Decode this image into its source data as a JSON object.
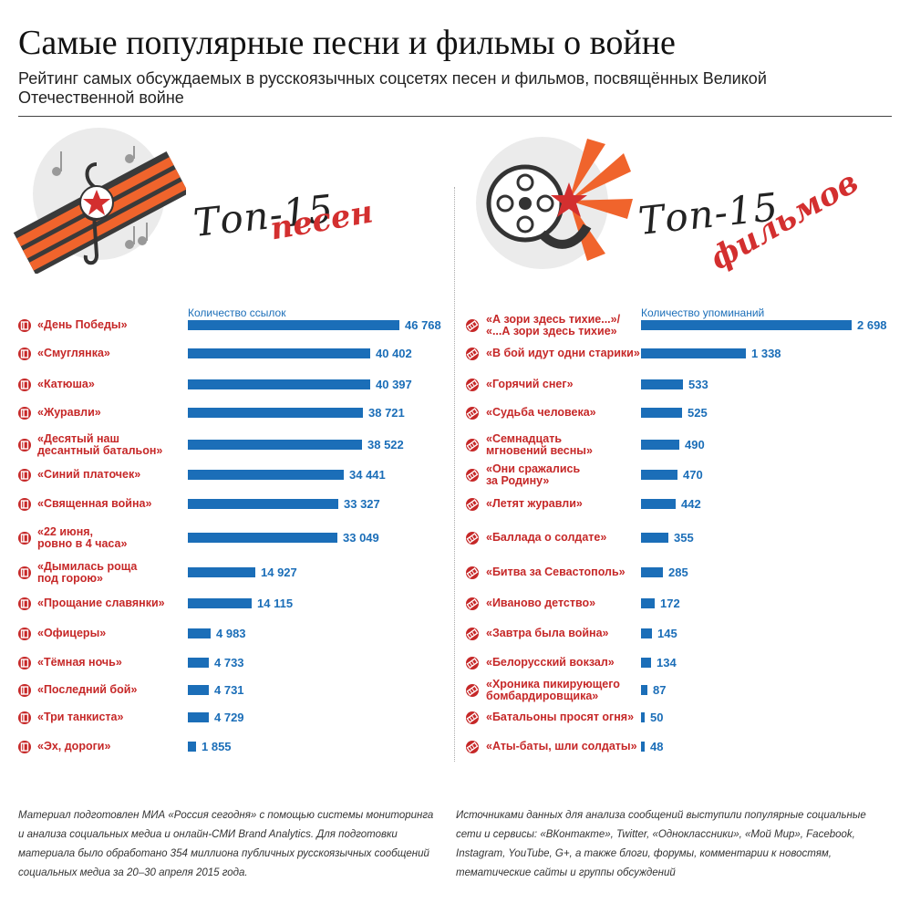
{
  "title": "Самые популярные песни и фильмы о войне",
  "subtitle": "Рейтинг самых обсуждаемых в русскоязычных соцсетях песен и фильмов, посвящённых Великой Отечественной войне",
  "songs_heading": {
    "top": "Топ-15",
    "red": "песен"
  },
  "films_heading": {
    "top": "Топ-15",
    "red": "фильмов"
  },
  "colors": {
    "accent_red": "#c62828",
    "bar_blue": "#1b6eb8",
    "ribbon_orange": "#f0642c"
  },
  "icons": {
    "songs": "music-ribbon-star-icon",
    "films": "film-reel-star-icon",
    "song_bullet": "music-note-icon",
    "film_bullet": "film-strip-icon"
  },
  "chart_data": [
    {
      "type": "bar",
      "orientation": "horizontal",
      "xlabel": "Количество ссылок",
      "xlim": [
        0,
        46768
      ],
      "categories": [
        "«День Победы»",
        "«Смуглянка»",
        "«Катюша»",
        "«Журавли»",
        "«Десятый наш\nдесантный батальон»",
        "«Синий платочек»",
        "«Священная война»",
        "«22 июня,\nровно в 4 часа»",
        "«Дымилась роща\nпод горою»",
        "«Прощание славянки»",
        "«Офицеры»",
        "«Тёмная ночь»",
        "«Последний бой»",
        "«Три танкиста»",
        "«Эх, дороги»"
      ],
      "values": [
        46768,
        40402,
        40397,
        38721,
        38522,
        34441,
        33327,
        33049,
        14927,
        14115,
        4983,
        4733,
        4731,
        4729,
        1855
      ],
      "value_labels": [
        "46 768",
        "40 402",
        "40 397",
        "38 721",
        "38 522",
        "34 441",
        "33 327",
        "33 049",
        "14 927",
        "14 115",
        "4 983",
        "4 733",
        "4 731",
        "4 729",
        "1 855"
      ]
    },
    {
      "type": "bar",
      "orientation": "horizontal",
      "xlabel": "Количество упоминаний",
      "xlim": [
        0,
        2698
      ],
      "categories": [
        "«А зори здесь тихие...»/\n«...А зори здесь тихие»",
        "«В бой идут одни старики»",
        "«Горячий снег»",
        "«Судьба человека»",
        "«Семнадцать\nмгновений весны»",
        "«Они сражались\nза Родину»",
        "«Летят журавли»",
        "«Баллада о солдате»",
        "«Битва за Севастополь»",
        "«Иваново детство»",
        "«Завтра была война»",
        "«Белорусский вокзал»",
        "«Хроника пикирующего\nбомбардировщика»",
        "«Батальоны просят огня»",
        "«Аты-баты, шли солдаты»"
      ],
      "values": [
        2698,
        1338,
        533,
        525,
        490,
        470,
        442,
        355,
        285,
        172,
        145,
        134,
        87,
        50,
        48
      ],
      "value_labels": [
        "2 698",
        "1 338",
        "533",
        "525",
        "490",
        "470",
        "442",
        "355",
        "285",
        "172",
        "145",
        "134",
        "87",
        "50",
        "48"
      ]
    }
  ],
  "footnotes": {
    "left": "Материал подготовлен МИА «Россия сегодня» с помощью системы мониторинга и анализа социальных медиа и онлайн-СМИ Brand Analytics. Для подготовки материала было обработано 354 миллиона публичных русскоязычных сообщений социальных медиа за 20–30 апреля 2015 года.",
    "right": "Источниками данных для анализа сообщений выступили популярные социальные сети и сервисы: «ВКонтакте», Twitter, «Одноклассники», «Мой Мир», Facebook, Instagram, YouTube, G+, а также блоги, форумы, комментарии к новостям, тематические сайты и группы обсуждений"
  }
}
